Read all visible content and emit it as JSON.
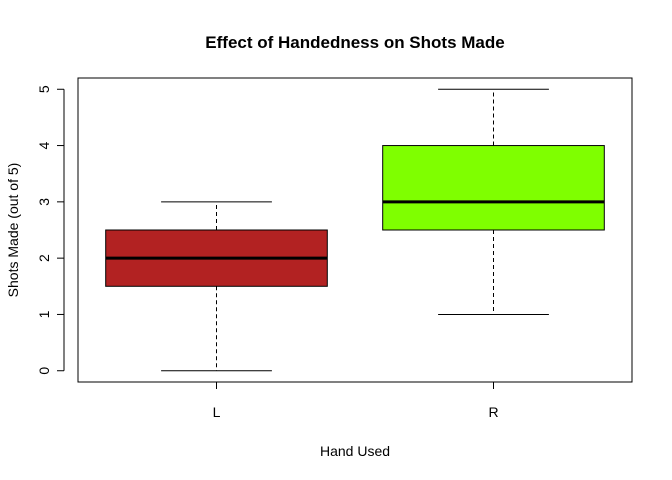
{
  "chart_data": {
    "type": "box",
    "title": "Effect of Handedness on Shots Made",
    "xlabel": "Hand Used",
    "ylabel": "Shots Made (out of 5)",
    "ylim": [
      -0.2,
      5.2
    ],
    "yticks": [
      "0",
      "1",
      "2",
      "3",
      "4",
      "5"
    ],
    "categories": [
      "L",
      "R"
    ],
    "boxes": [
      {
        "name": "L",
        "min": 0,
        "q1": 1.5,
        "median": 2,
        "q3": 2.5,
        "max": 3,
        "color": "#B22222"
      },
      {
        "name": "R",
        "min": 1,
        "q1": 2.5,
        "median": 3,
        "q3": 4,
        "max": 5,
        "color": "#7FFF00"
      }
    ],
    "grid": false,
    "legend": "none"
  }
}
